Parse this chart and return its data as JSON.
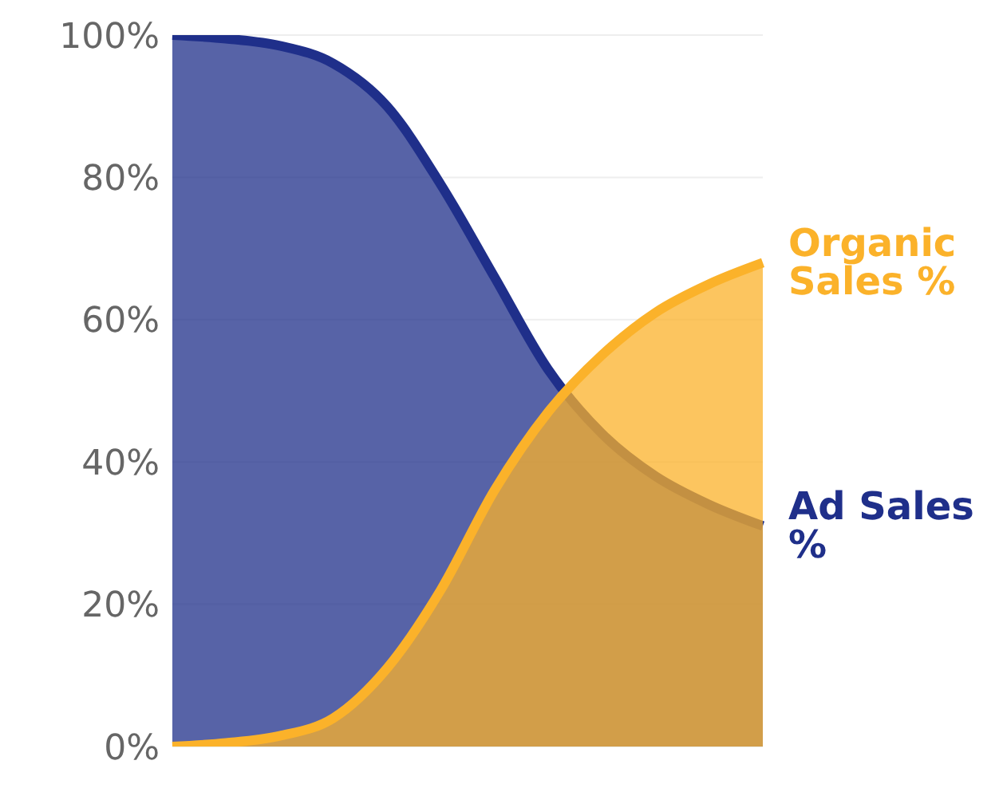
{
  "chart_data": {
    "type": "area",
    "categories": [
      null,
      null,
      null,
      null,
      null,
      null,
      null,
      null,
      null,
      null,
      null,
      null
    ],
    "series": [
      {
        "name": "Ad Sales %",
        "color": "#1f2f8a",
        "values": [
          100,
          99.5,
          98.5,
          96,
          90,
          79,
          66,
          53,
          44,
          38,
          34,
          31
        ]
      },
      {
        "name": "Organic Sales %",
        "color": "#fbb22a",
        "values": [
          0,
          0.5,
          1.5,
          4,
          11,
          22,
          36,
          47,
          55,
          61,
          65,
          68
        ]
      }
    ],
    "ylim": [
      0,
      100
    ],
    "yticks": [
      {
        "value": 0,
        "label": "0%"
      },
      {
        "value": 20,
        "label": "20%"
      },
      {
        "value": 40,
        "label": "40%"
      },
      {
        "value": 60,
        "label": "60%"
      },
      {
        "value": 80,
        "label": "80%"
      },
      {
        "value": 100,
        "label": "100%"
      }
    ],
    "grid": "y",
    "tick_labels": "y"
  }
}
